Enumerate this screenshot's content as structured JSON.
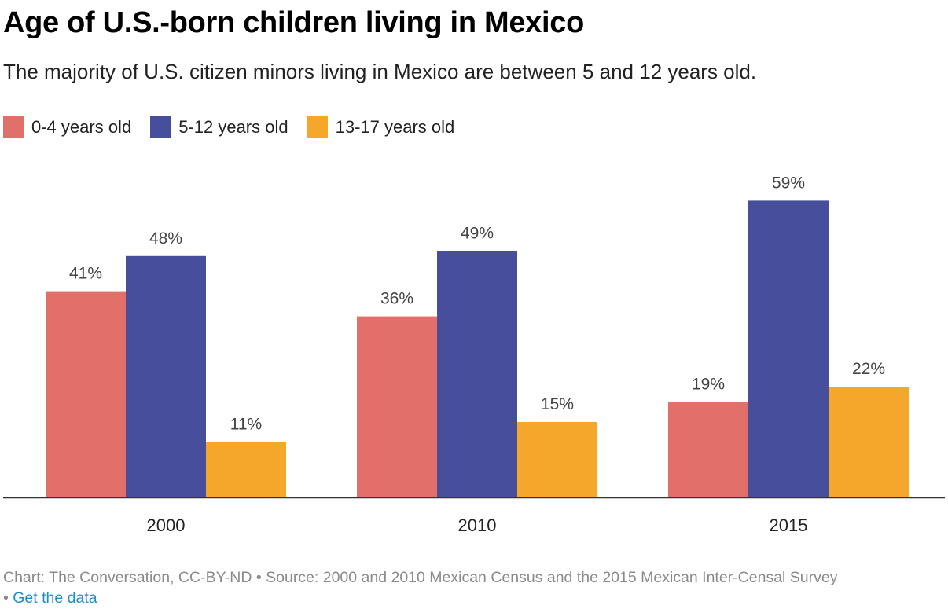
{
  "title": "Age of U.S.-born children living in Mexico",
  "subtitle": "The majority of U.S. citizen minors living in Mexico are between 5 and 12 years old.",
  "footer": {
    "credit": "Chart: The Conversation, CC-BY-ND • Source: 2000 and 2010 Mexican Census and the 2015 Mexican Inter-Censal Survey",
    "separator": "•",
    "link_text": "Get the data"
  },
  "chart_data": {
    "type": "bar",
    "categories": [
      "2000",
      "2010",
      "2015"
    ],
    "series": [
      {
        "name": "0-4 years old",
        "color": "#e2706a",
        "values": [
          41,
          36,
          19
        ],
        "labels": [
          "41%",
          "36%",
          "19%"
        ]
      },
      {
        "name": "5-12 years old",
        "color": "#474f9c",
        "values": [
          48,
          49,
          59
        ],
        "labels": [
          "48%",
          "49%",
          "59%"
        ]
      },
      {
        "name": "13-17 years old",
        "color": "#f4a72a",
        "values": [
          11,
          15,
          22
        ],
        "labels": [
          "11%",
          "15%",
          "22%"
        ]
      }
    ],
    "ylim": [
      0,
      65
    ],
    "grid": false,
    "legend": "top-left"
  }
}
